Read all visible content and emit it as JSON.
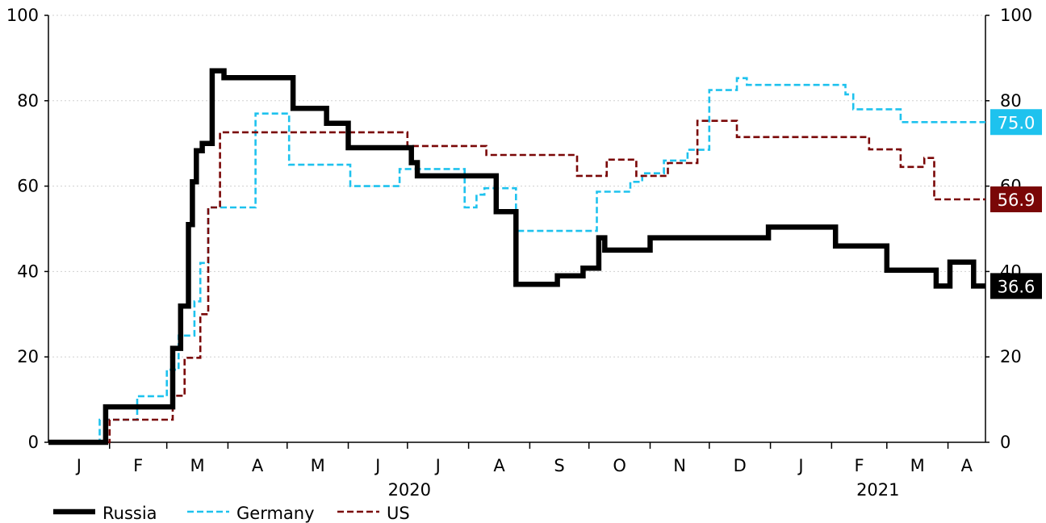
{
  "chart_data": {
    "type": "line",
    "title": "",
    "xlabel": "",
    "ylabel": "",
    "ylim": [
      0,
      100
    ],
    "y_ticks": [
      "0",
      "20",
      "40",
      "60",
      "80",
      "100"
    ],
    "y2_ticks": [
      "0",
      "20",
      "40",
      "60",
      "80",
      "100"
    ],
    "x_range": [
      "2020-01-01",
      "2021-04-20"
    ],
    "month_labels": [
      "J",
      "F",
      "M",
      "A",
      "M",
      "J",
      "J",
      "A",
      "S",
      "O",
      "N",
      "D",
      "J",
      "F",
      "M",
      "A"
    ],
    "year_labels": [
      "2020",
      "2021"
    ],
    "grid": "horizontal dotted",
    "legend_position": "bottom-left",
    "series": [
      {
        "name": "Russia",
        "color": "#000000",
        "style": "solid-thick",
        "end_label": "36.6",
        "x": [
          "2020-01-01",
          "2020-01-29",
          "2020-01-30",
          "2020-02-28",
          "2020-03-04",
          "2020-03-05",
          "2020-03-08",
          "2020-03-10",
          "2020-03-12",
          "2020-03-14",
          "2020-03-16",
          "2020-03-19",
          "2020-03-24",
          "2020-03-26",
          "2020-03-30",
          "2020-03-31",
          "2020-04-04",
          "2020-05-04",
          "2020-05-16",
          "2020-05-21",
          "2020-05-27",
          "2020-06-01",
          "2020-07-01",
          "2020-07-03",
          "2020-07-06",
          "2020-08-15",
          "2020-08-25",
          "2020-09-01",
          "2020-09-15",
          "2020-09-28",
          "2020-10-06",
          "2020-10-09",
          "2020-11-01",
          "2020-12-20",
          "2020-12-31",
          "2021-01-12",
          "2021-02-03",
          "2021-02-22",
          "2021-03-01",
          "2021-03-20",
          "2021-03-26",
          "2021-04-02",
          "2021-04-14",
          "2021-04-20"
        ],
        "y": [
          0,
          0,
          8.3,
          8.3,
          22,
          22,
          31.9,
          31.9,
          51,
          61,
          68.3,
          70,
          87,
          87,
          85.4,
          85.4,
          85.4,
          78.2,
          78.2,
          74.7,
          74.7,
          69,
          69,
          65.5,
          62.4,
          54,
          37,
          37,
          39,
          40.8,
          47.9,
          45,
          47.9,
          47.9,
          50.4,
          50.4,
          46,
          46,
          40.3,
          40.3,
          36.6,
          42.2,
          36.6,
          36.6
        ]
      },
      {
        "name": "Germany",
        "color": "#1ec2ee",
        "style": "dashed",
        "end_label": "75.0",
        "x": [
          "2020-01-01",
          "2020-01-25",
          "2020-01-27",
          "2020-02-05",
          "2020-02-15",
          "2020-02-25",
          "2020-03-01",
          "2020-03-07",
          "2020-03-12",
          "2020-03-15",
          "2020-03-18",
          "2020-03-22",
          "2020-04-15",
          "2020-04-25",
          "2020-05-02",
          "2020-05-08",
          "2020-06-02",
          "2020-06-10",
          "2020-06-20",
          "2020-06-27",
          "2020-07-05",
          "2020-07-30",
          "2020-08-05",
          "2020-08-09",
          "2020-08-20",
          "2020-08-25",
          "2020-09-15",
          "2020-09-25",
          "2020-10-05",
          "2020-10-12",
          "2020-10-22",
          "2020-10-28",
          "2020-11-08",
          "2020-11-20",
          "2020-12-01",
          "2020-12-15",
          "2020-12-20",
          "2020-12-23",
          "2021-02-03",
          "2021-02-08",
          "2021-02-12",
          "2021-03-01",
          "2021-03-08",
          "2021-04-20"
        ],
        "y": [
          0,
          0,
          5.3,
          5.3,
          10.8,
          10.8,
          17,
          25,
          25,
          33,
          42,
          55,
          77,
          77,
          65,
          65,
          60,
          60,
          60,
          64,
          64,
          55,
          58,
          59.5,
          59.5,
          49.5,
          49.5,
          49.5,
          58.7,
          58.7,
          61,
          63,
          66,
          68.5,
          82.5,
          85.3,
          83.7,
          83.7,
          83.7,
          81.5,
          78,
          78,
          75,
          75
        ]
      },
      {
        "name": "US",
        "color": "#7a0707",
        "style": "dashed",
        "end_label": "56.9",
        "x": [
          "2020-01-01",
          "2020-01-31",
          "2020-02-01",
          "2020-03-01",
          "2020-03-04",
          "2020-03-10",
          "2020-03-18",
          "2020-03-22",
          "2020-03-28",
          "2020-06-30",
          "2020-07-01",
          "2020-08-05",
          "2020-08-10",
          "2020-09-25",
          "2020-09-28",
          "2020-10-10",
          "2020-10-25",
          "2020-11-01",
          "2020-11-10",
          "2020-11-25",
          "2020-12-05",
          "2020-12-15",
          "2021-02-13",
          "2021-02-20",
          "2021-03-08",
          "2021-03-20",
          "2021-03-25",
          "2021-04-20"
        ],
        "y": [
          0,
          0,
          5.3,
          5.3,
          10.9,
          19.8,
          30,
          55,
          72.6,
          72.6,
          69.4,
          69.4,
          67.3,
          62.4,
          62.4,
          66.2,
          62.4,
          62.4,
          65.4,
          75.3,
          75.3,
          71.5,
          71.5,
          68.6,
          64.5,
          66.6,
          56.9,
          56.9
        ]
      }
    ]
  }
}
